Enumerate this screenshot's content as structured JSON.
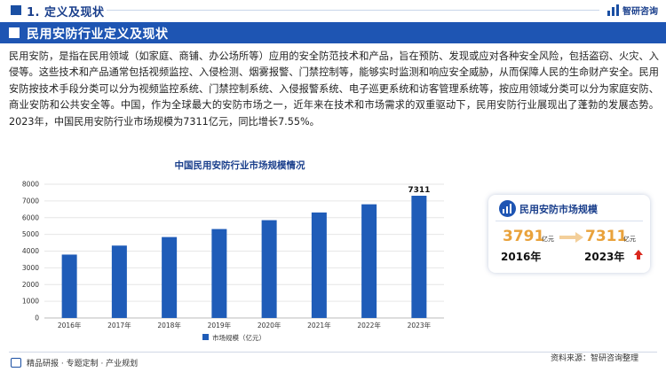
{
  "header": {
    "section_title": "1. 定义及现状",
    "logo_text": "智研咨询"
  },
  "banner": {
    "title": "民用安防行业定义及现状"
  },
  "paragraph": "民用安防，是指在民用领域（如家庭、商铺、办公场所等）应用的安全防范技术和产品，旨在预防、发现或应对各种安全风险，包括盗窃、火灾、入侵等。这些技术和产品通常包括视频监控、入侵检测、烟雾报警、门禁控制等，能够实时监测和响应安全威胁，从而保障人民的生命财产安全。民用安防按技术手段分类可以分为视频监控系统、门禁控制系统、入侵报警系统、电子巡更系统和访客管理系统等，按应用领域分类可以分为家庭安防、商业安防和公共安全等。中国，作为全球最大的安防市场之一，近年来在技术和市场需求的双重驱动下，民用安防行业展现出了蓬勃的发展态势。2023年，中国民用安防行业市场规模为7311亿元，同比增长7.55%。",
  "chart_data": {
    "type": "bar",
    "title": "中国民用安防行业市场规模情况",
    "categories": [
      "2016年",
      "2017年",
      "2018年",
      "2019年",
      "2020年",
      "2021年",
      "2022年",
      "2023年"
    ],
    "series": [
      {
        "name": "市场规模（亿元）",
        "values": [
          3791,
          4330,
          4840,
          5320,
          5850,
          6310,
          6800,
          7311
        ]
      }
    ],
    "data_labels": {
      "2023年": "7311"
    },
    "yticks": [
      0,
      1000,
      2000,
      3000,
      4000,
      5000,
      6000,
      7000,
      8000
    ],
    "ylim": [
      0,
      8000
    ],
    "grid": true,
    "legend_position": "bottom",
    "bar_color": "#1f5cb8"
  },
  "card": {
    "title": "民用安防市场规模",
    "old_value": "3791",
    "old_unit": "亿元",
    "old_year": "2016年",
    "new_value": "7311",
    "new_unit": "亿元",
    "new_year": "2023年"
  },
  "footer": {
    "left": "精品研报 · 专题定制 · 产业规划",
    "right": "资料来源：智研咨询整理"
  },
  "colors": {
    "primary": "#1e55b3",
    "accent": "#e9a23b",
    "up": "#d9281e"
  }
}
